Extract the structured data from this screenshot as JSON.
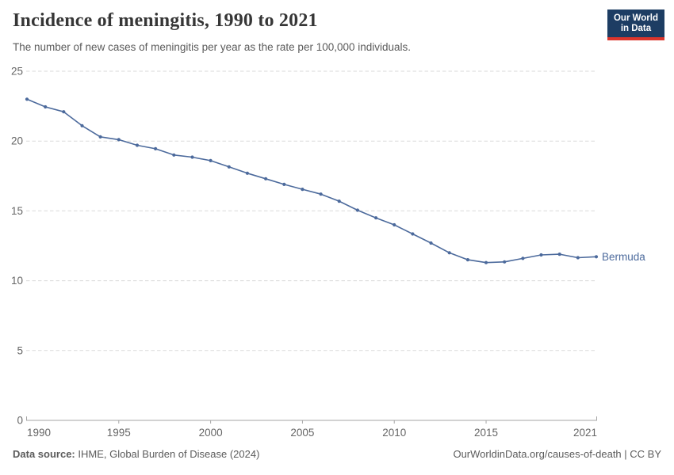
{
  "header": {
    "title": "Incidence of meningitis, 1990 to 2021",
    "subtitle": "The number of new cases of meningitis per year as the rate per 100,000 individuals.",
    "logo": {
      "line1": "Our World",
      "line2": "in Data",
      "background_color": "#1d3d63",
      "accent_color": "#dc352c"
    }
  },
  "chart_data": {
    "type": "line",
    "title": "Incidence of meningitis, 1990 to 2021",
    "xlabel": "",
    "ylabel": "",
    "xlim": [
      1990,
      2021
    ],
    "ylim": [
      0,
      25
    ],
    "x_ticks": [
      1990,
      1995,
      2000,
      2005,
      2010,
      2015,
      2021
    ],
    "y_ticks": [
      0,
      5,
      10,
      15,
      20,
      25
    ],
    "grid": "horizontal-dashed",
    "legend_position": "inline-end-of-line",
    "tick_label_color": "#666666",
    "series": [
      {
        "name": "Bermuda",
        "color": "#4c6a9c",
        "x": [
          1990,
          1991,
          1992,
          1993,
          1994,
          1995,
          1996,
          1997,
          1998,
          1999,
          2000,
          2001,
          2002,
          2003,
          2004,
          2005,
          2006,
          2007,
          2008,
          2009,
          2010,
          2011,
          2012,
          2013,
          2014,
          2015,
          2016,
          2017,
          2018,
          2019,
          2020,
          2021
        ],
        "values": [
          23.0,
          22.45,
          22.1,
          21.1,
          20.3,
          20.1,
          19.7,
          19.45,
          19.0,
          18.85,
          18.6,
          18.15,
          17.7,
          17.3,
          16.9,
          16.55,
          16.2,
          15.7,
          15.05,
          14.5,
          14.0,
          13.35,
          12.7,
          12.0,
          11.5,
          11.3,
          11.35,
          11.6,
          11.85,
          11.9,
          11.65,
          11.72
        ]
      }
    ]
  },
  "footer": {
    "source_label": "Data source:",
    "source_text": " IHME, Global Burden of Disease (2024)",
    "attribution": "OurWorldinData.org/causes-of-death | CC BY"
  }
}
